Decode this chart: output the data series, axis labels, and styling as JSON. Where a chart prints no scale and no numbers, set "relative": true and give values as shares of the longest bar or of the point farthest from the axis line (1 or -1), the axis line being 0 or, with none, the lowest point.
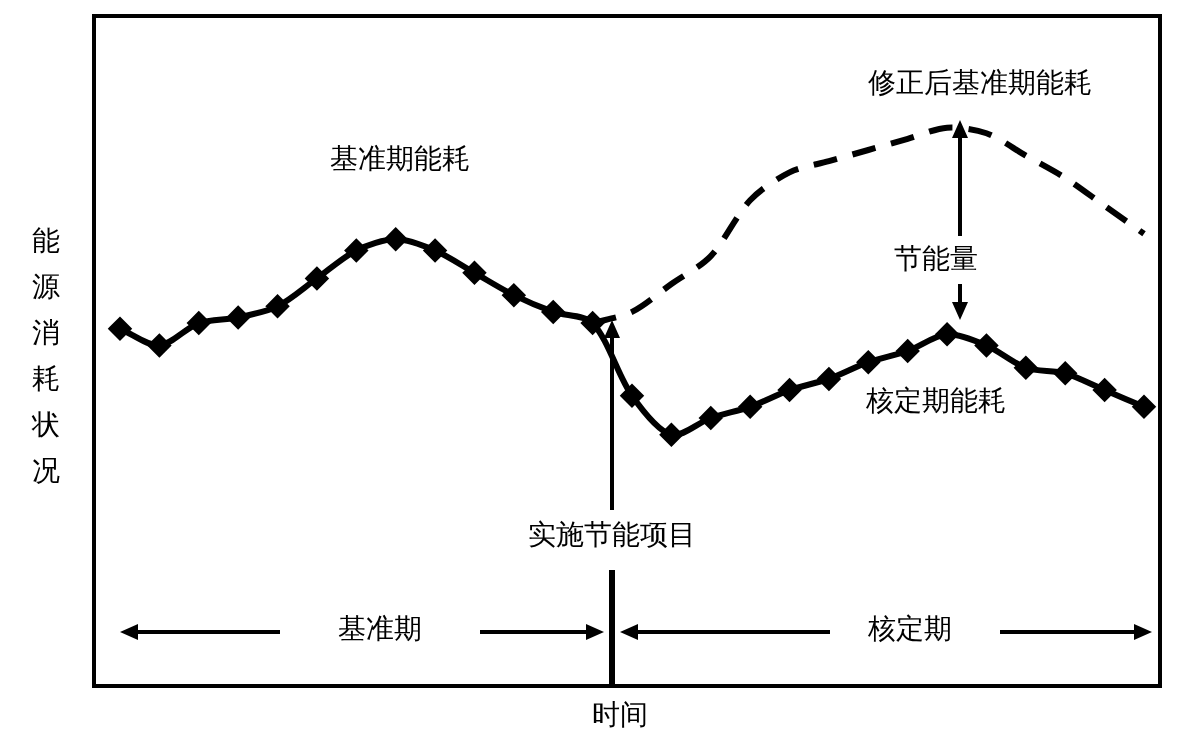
{
  "chart_data": {
    "type": "line",
    "relative": true,
    "xlabel": "时间",
    "ylabel": "能源消耗状况",
    "categories": [
      null,
      null,
      null,
      null,
      null,
      null,
      null,
      null,
      null,
      null,
      null,
      null,
      null,
      null,
      null,
      null,
      null,
      null,
      null,
      null,
      null,
      null,
      null,
      null,
      null,
      null,
      null
    ],
    "series": [
      {
        "color": "#000000",
        "marker": "diamond",
        "line_style": "solid",
        "values": [
          0.64,
          0.61,
          0.65,
          0.66,
          0.68,
          0.73,
          0.78,
          0.8,
          0.78,
          0.74,
          0.7,
          0.67,
          0.65,
          0.52,
          0.45,
          0.48,
          0.5,
          0.53,
          0.55,
          0.58,
          0.6,
          0.63,
          0.61,
          0.57,
          0.56,
          0.53,
          0.5
        ]
      },
      {
        "color": "#000000",
        "marker": "none",
        "line_style": "dashed",
        "values": [
          null,
          null,
          null,
          null,
          null,
          null,
          null,
          null,
          null,
          null,
          null,
          null,
          0.65,
          0.67,
          0.72,
          0.77,
          0.87,
          0.92,
          0.94,
          0.96,
          0.98,
          1.0,
          0.99,
          0.95,
          0.91,
          0.86,
          0.81
        ]
      }
    ],
    "annotations": [
      "基准期能耗",
      "修正后基准期能耗",
      "节能量",
      "核定期能耗",
      "实施节能项目",
      "基准期",
      "核定期"
    ],
    "legend": false
  }
}
